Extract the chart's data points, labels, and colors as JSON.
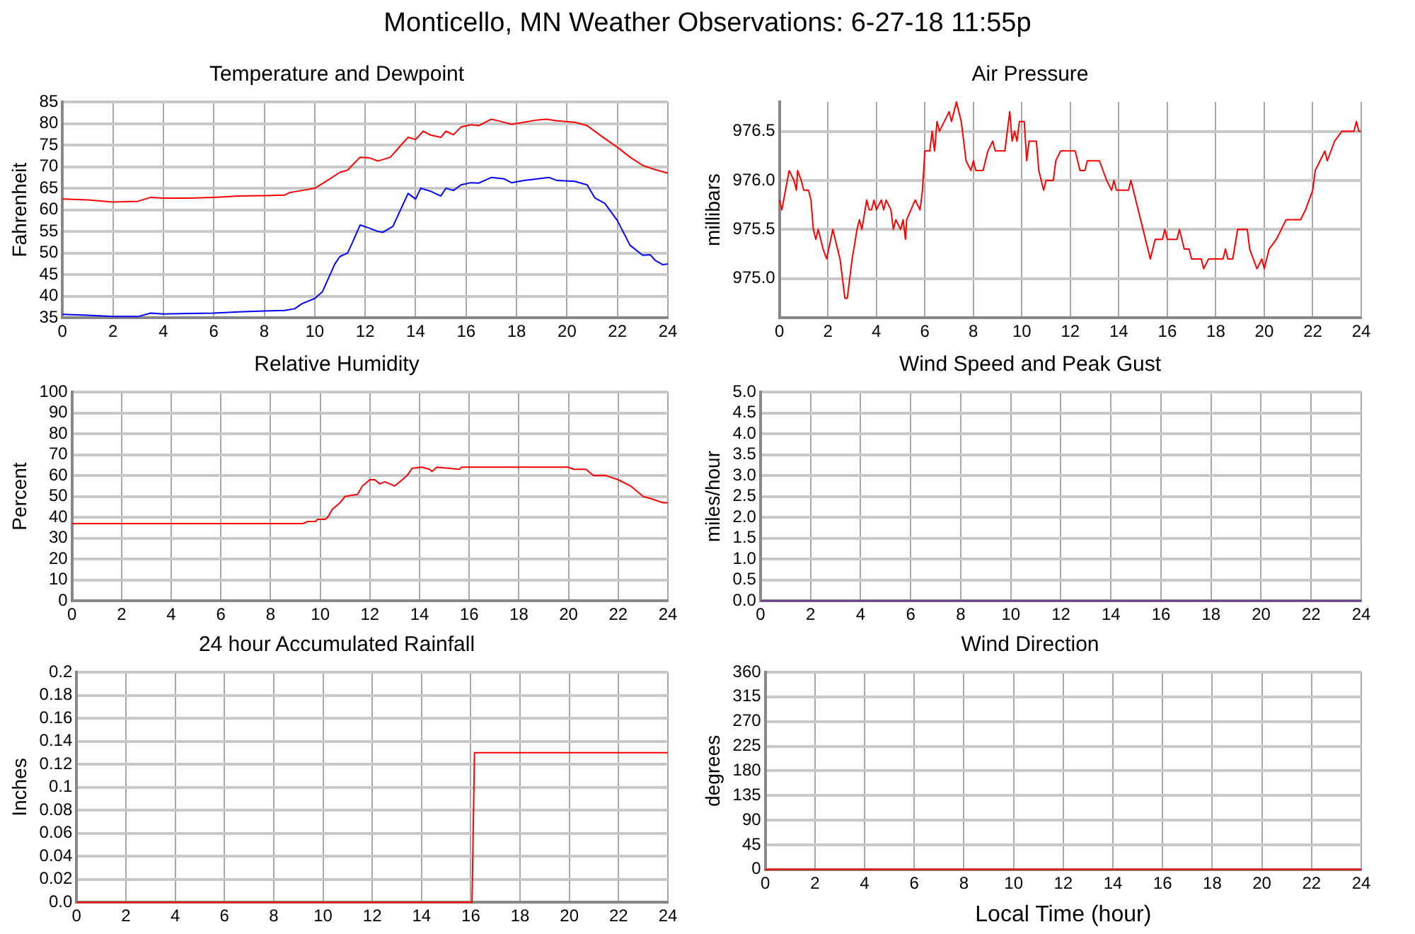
{
  "chart_data": [
    {
      "type": "line",
      "title": "Temperature and Dewpoint",
      "ylabel": "Fahrenheit",
      "annotations": [
        "Monticello, MN Weather Observations: 6-27-18 11:55p"
      ],
      "xlim": [
        0,
        24
      ],
      "xticks": [
        0,
        2,
        4,
        6,
        8,
        10,
        12,
        14,
        16,
        18,
        20,
        22,
        24
      ],
      "ylim": [
        35,
        85
      ],
      "yticks": [
        35,
        40,
        45,
        50,
        55,
        60,
        65,
        70,
        75,
        80,
        85
      ],
      "grid": true,
      "legend": false,
      "marker": "none",
      "line_style": "solid",
      "series": [
        {
          "color": "#ff0000",
          "x": [
            0,
            1,
            2,
            3,
            3.5,
            4,
            5,
            6,
            7,
            8,
            8.8,
            9,
            9.5,
            10,
            10.5,
            11,
            11.3,
            11.8,
            12.2,
            12.5,
            13,
            13.5,
            13.7,
            14,
            14.3,
            14.6,
            15,
            15.2,
            15.5,
            15.8,
            16.2,
            16.5,
            17,
            17.3,
            17.8,
            18.3,
            18.8,
            19.2,
            19.6,
            20.3,
            20.8,
            21.5,
            22,
            22.5,
            23,
            23.5,
            24
          ],
          "values": [
            62.5,
            62.3,
            61.8,
            62.0,
            62.9,
            62.7,
            62.7,
            62.9,
            63.2,
            63.3,
            63.4,
            64,
            64.5,
            65,
            66.8,
            68.7,
            69.2,
            72.2,
            72,
            71.3,
            72.2,
            75.5,
            76.8,
            76.3,
            78.2,
            77.3,
            76.8,
            78.2,
            77.4,
            79.2,
            79.7,
            79.5,
            81.0,
            80.6,
            79.8,
            80.3,
            80.8,
            81.0,
            80.6,
            80.3,
            79.5,
            76.5,
            74.5,
            72.2,
            70.3,
            69.3,
            68.5
          ]
        },
        {
          "color": "#0000ff",
          "x": [
            0,
            1,
            2,
            3,
            3.5,
            4,
            6,
            7,
            8,
            8.8,
            9.2,
            9.5,
            10,
            10.3,
            10.8,
            11,
            11.3,
            11.5,
            11.8,
            12.2,
            12.5,
            12.7,
            13.1,
            13.4,
            13.7,
            14,
            14.2,
            14.6,
            15,
            15.2,
            15.5,
            15.8,
            16.2,
            16.5,
            17,
            17.5,
            17.8,
            18.3,
            19,
            19.3,
            19.6,
            20.3,
            20.8,
            21.1,
            21.5,
            22,
            22.5,
            23,
            23.3,
            23.5,
            23.8,
            24
          ],
          "values": [
            35.8,
            35.6,
            35.3,
            35.3,
            36.1,
            35.9,
            36.1,
            36.4,
            36.6,
            36.7,
            37.1,
            38.3,
            39.5,
            41,
            47.5,
            49.2,
            50,
            52.5,
            56.5,
            55.7,
            55,
            54.8,
            56.2,
            60,
            63.8,
            62.5,
            65,
            64.3,
            63.2,
            65,
            64.5,
            65.8,
            66.3,
            66.2,
            67.5,
            67.2,
            66.3,
            66.8,
            67.3,
            67.5,
            66.8,
            66.6,
            65.8,
            62.8,
            61.5,
            57.5,
            51.8,
            49.5,
            49.6,
            48.3,
            47.3,
            47.5
          ]
        }
      ]
    },
    {
      "type": "line",
      "title": "Air Pressure",
      "ylabel": "millibars",
      "xlim": [
        0,
        24
      ],
      "xticks": [
        0,
        2,
        4,
        6,
        8,
        10,
        12,
        14,
        16,
        18,
        20,
        22,
        24
      ],
      "ylim": [
        974.6,
        976.8
      ],
      "yticks": [
        {
          "value": 975,
          "label": "975.0"
        },
        {
          "value": 975.5,
          "label": "975.5"
        },
        {
          "value": 976,
          "label": "976.0"
        },
        {
          "value": 976.5,
          "label": "976.5"
        }
      ],
      "grid": true,
      "legend": false,
      "marker": "none",
      "line_style": "solid",
      "series": [
        {
          "color": "#ff0000",
          "x": [
            0,
            0.1,
            0.4,
            0.6,
            0.7,
            0.75,
            0.9,
            1,
            1.2,
            1.3,
            1.4,
            1.5,
            1.6,
            1.8,
            1.95,
            2.2,
            2.5,
            2.6,
            2.7,
            2.8,
            3.0,
            3.2,
            3.3,
            3.4,
            3.6,
            3.7,
            3.8,
            3.9,
            4.0,
            4.2,
            4.3,
            4.4,
            4.6,
            4.7,
            4.8,
            5.0,
            5.1,
            5.2,
            5.25,
            5.6,
            5.8,
            5.9,
            6.0,
            6.2,
            6.3,
            6.4,
            6.5,
            6.6,
            7.0,
            7.1,
            7.3,
            7.5,
            7.7,
            7.9,
            8.0,
            8.1,
            8.4,
            8.6,
            8.8,
            8.9,
            9.3,
            9.5,
            9.6,
            9.7,
            9.8,
            9.9,
            10.1,
            10.2,
            10.3,
            10.6,
            10.7,
            10.9,
            11.0,
            11.3,
            11.4,
            11.6,
            12.2,
            12.4,
            12.6,
            12.7,
            13.2,
            13.5,
            13.7,
            13.8,
            13.9,
            14.4,
            14.5,
            14.7,
            14.9,
            15.1,
            15.3,
            15.5,
            15.8,
            15.9,
            16.0,
            16.4,
            16.5,
            16.7,
            16.9,
            17.0,
            17.4,
            17.5,
            17.7,
            18.3,
            18.4,
            18.5,
            18.7,
            18.9,
            19.3,
            19.4,
            19.7,
            19.9,
            20.0,
            20.2,
            20.5,
            20.7,
            20.9,
            21.5,
            21.7,
            22.0,
            22.1,
            22.3,
            22.5,
            22.6,
            22.9,
            23.2,
            23.7,
            23.8,
            23.9,
            24.0
          ],
          "values": [
            975.8,
            975.7,
            976.1,
            976.0,
            975.9,
            976.1,
            976.0,
            975.9,
            975.9,
            975.8,
            975.5,
            975.4,
            975.5,
            975.3,
            975.2,
            975.5,
            975.2,
            975.0,
            974.8,
            974.8,
            975.2,
            975.5,
            975.6,
            975.5,
            975.8,
            975.7,
            975.7,
            975.8,
            975.7,
            975.8,
            975.7,
            975.8,
            975.7,
            975.5,
            975.6,
            975.5,
            975.6,
            975.4,
            975.6,
            975.8,
            975.7,
            975.9,
            976.3,
            976.3,
            976.5,
            976.3,
            976.6,
            976.5,
            976.7,
            976.6,
            976.8,
            976.6,
            976.2,
            976.1,
            976.2,
            976.1,
            976.1,
            976.3,
            976.4,
            976.3,
            976.3,
            976.7,
            976.4,
            976.5,
            976.4,
            976.6,
            976.6,
            976.2,
            976.4,
            976.4,
            976.1,
            975.9,
            976.0,
            976.0,
            976.2,
            976.3,
            976.3,
            976.1,
            976.1,
            976.2,
            976.2,
            976.0,
            975.9,
            976.0,
            975.9,
            975.9,
            976.0,
            975.8,
            975.6,
            975.4,
            975.2,
            975.4,
            975.4,
            975.5,
            975.4,
            975.4,
            975.5,
            975.3,
            975.3,
            975.2,
            975.2,
            975.1,
            975.2,
            975.2,
            975.3,
            975.2,
            975.2,
            975.5,
            975.5,
            975.3,
            975.1,
            975.2,
            975.1,
            975.3,
            975.4,
            975.5,
            975.6,
            975.6,
            975.7,
            975.9,
            976.1,
            976.2,
            976.3,
            976.2,
            976.4,
            976.5,
            976.5,
            976.6,
            976.5,
            976.5
          ]
        }
      ]
    },
    {
      "type": "line",
      "title": "Relative Humidity",
      "ylabel": "Percent",
      "xlim": [
        0,
        24
      ],
      "xticks": [
        0,
        2,
        4,
        6,
        8,
        10,
        12,
        14,
        16,
        18,
        20,
        22,
        24
      ],
      "ylim": [
        0,
        100
      ],
      "yticks": [
        0,
        10,
        20,
        30,
        40,
        50,
        60,
        70,
        80,
        90,
        100
      ],
      "grid": true,
      "legend": false,
      "marker": "none",
      "line_style": "solid",
      "series": [
        {
          "color": "#ff0000",
          "x": [
            0,
            9.3,
            9.5,
            9.8,
            9.9,
            10.2,
            10.3,
            10.5,
            10.8,
            11,
            11.5,
            11.7,
            12,
            12.2,
            12.4,
            12.6,
            13,
            13.2,
            13.5,
            13.7,
            14.1,
            14.4,
            14.5,
            14.7,
            15.6,
            15.7,
            20,
            20.2,
            20.7,
            21,
            21.5,
            22,
            22.5,
            23,
            23.3,
            23.8,
            24
          ],
          "values": [
            37,
            37,
            38,
            38,
            39,
            39,
            40,
            44,
            47,
            50,
            51,
            55,
            58,
            58,
            56,
            57,
            55,
            57,
            60,
            63.5,
            64,
            63,
            62,
            64,
            63,
            64,
            64,
            63,
            63,
            60,
            60,
            58,
            55,
            50,
            49,
            47,
            47
          ]
        }
      ]
    },
    {
      "type": "line",
      "title": "Wind Speed and Peak Gust",
      "ylabel": "miles/hour",
      "xlim": [
        0,
        24
      ],
      "xticks": [
        0,
        2,
        4,
        6,
        8,
        10,
        12,
        14,
        16,
        18,
        20,
        22,
        24
      ],
      "ylim": [
        0,
        5
      ],
      "yticks": [
        {
          "value": 0,
          "label": "0.0"
        },
        {
          "value": 0.5,
          "label": "0.5"
        },
        {
          "value": 1,
          "label": "1.0"
        },
        {
          "value": 1.5,
          "label": "1.5"
        },
        {
          "value": 2,
          "label": "2.0"
        },
        {
          "value": 2.5,
          "label": "2.5"
        },
        {
          "value": 3,
          "label": "3.0"
        },
        {
          "value": 3.5,
          "label": "3.5"
        },
        {
          "value": 4,
          "label": "4.0"
        },
        {
          "value": 4.5,
          "label": "4.5"
        },
        {
          "value": 5,
          "label": "5.0"
        }
      ],
      "grid": true,
      "legend": false,
      "marker": "none",
      "line_style": "solid",
      "series": [
        {
          "color": "#663399",
          "x": [
            0,
            24
          ],
          "values": [
            0,
            0
          ]
        }
      ]
    },
    {
      "type": "line",
      "title": "24 hour Accumulated Rainfall",
      "ylabel": "Inches",
      "xlim": [
        0,
        24
      ],
      "xticks": [
        0,
        2,
        4,
        6,
        8,
        10,
        12,
        14,
        16,
        18,
        20,
        22,
        24
      ],
      "ylim": [
        0,
        0.2
      ],
      "yticks": [
        {
          "value": 0,
          "label": "0.0"
        },
        0.02,
        0.04,
        0.06,
        0.08,
        0.1,
        0.12,
        0.14,
        0.16,
        0.18,
        0.2
      ],
      "grid": true,
      "legend": false,
      "marker": "none",
      "line_style": "solid",
      "series": [
        {
          "color": "#ff0000",
          "x": [
            0,
            16.05,
            16.15,
            24
          ],
          "values": [
            0,
            0,
            0.13,
            0.13
          ]
        }
      ]
    },
    {
      "type": "line",
      "title": "Wind Direction",
      "xlabel": "Local Time (hour)",
      "ylabel": "degrees",
      "xlim": [
        0,
        24
      ],
      "xticks": [
        0,
        2,
        4,
        6,
        8,
        10,
        12,
        14,
        16,
        18,
        20,
        22,
        24
      ],
      "ylim": [
        0,
        360
      ],
      "yticks": [
        0,
        45,
        90,
        135,
        180,
        225,
        270,
        315,
        360
      ],
      "grid": true,
      "legend": false,
      "marker": "none",
      "line_style": "solid",
      "series": [
        {
          "color": "#ff0000",
          "x": [
            0,
            24
          ],
          "values": [
            0,
            0
          ]
        }
      ]
    }
  ]
}
